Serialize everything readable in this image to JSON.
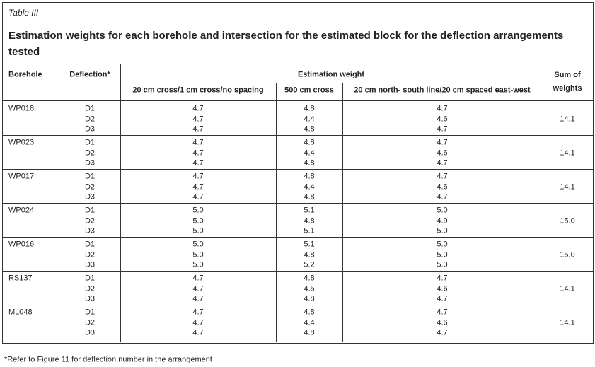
{
  "table": {
    "label": "Table III",
    "title": "Estimation weights for each borehole and intersection for the estimated block for the deflection arrangements tested",
    "headers": {
      "borehole": "Borehole",
      "deflection": "Deflection*",
      "estimation_weight": "Estimation weight",
      "sub": [
        "20 cm cross/1 cm cross/no spacing",
        "500 cm cross",
        "20 cm north- south line/20 cm spaced east-west"
      ],
      "sum": "Sum of weights"
    },
    "groups": [
      {
        "borehole": "WP018",
        "rows": [
          [
            "D1",
            "4.7",
            "4.8",
            "4.7"
          ],
          [
            "D2",
            "4.7",
            "4.4",
            "4.6"
          ],
          [
            "D3",
            "4.7",
            "4.8",
            "4.7"
          ]
        ],
        "sum": "14.1"
      },
      {
        "borehole": "WP023",
        "rows": [
          [
            "D1",
            "4.7",
            "4.8",
            "4.7"
          ],
          [
            "D2",
            "4.7",
            "4.4",
            "4.6"
          ],
          [
            "D3",
            "4.7",
            "4.8",
            "4.7"
          ]
        ],
        "sum": "14.1"
      },
      {
        "borehole": "WP017",
        "rows": [
          [
            "D1",
            "4.7",
            "4.8",
            "4.7"
          ],
          [
            "D2",
            "4.7",
            "4.4",
            "4.6"
          ],
          [
            "D3",
            "4.7",
            "4.8",
            "4.7"
          ]
        ],
        "sum": "14.1"
      },
      {
        "borehole": "WP024",
        "rows": [
          [
            "D1",
            "5.0",
            "5.1",
            "5.0"
          ],
          [
            "D2",
            "5.0",
            "4.8",
            "4.9"
          ],
          [
            "D3",
            "5.0",
            "5.1",
            "5.0"
          ]
        ],
        "sum": "15.0"
      },
      {
        "borehole": "WP016",
        "rows": [
          [
            "D1",
            "5.0",
            "5.1",
            "5.0"
          ],
          [
            "D2",
            "5.0",
            "4.8",
            "5.0"
          ],
          [
            "D3",
            "5.0",
            "5.2",
            "5.0"
          ]
        ],
        "sum": "15.0"
      },
      {
        "borehole": "RS137",
        "rows": [
          [
            "D1",
            "4.7",
            "4.8",
            "4.7"
          ],
          [
            "D2",
            "4.7",
            "4.5",
            "4.6"
          ],
          [
            "D3",
            "4.7",
            "4.8",
            "4.7"
          ]
        ],
        "sum": "14.1"
      },
      {
        "borehole": "ML048",
        "rows": [
          [
            "D1",
            "4.7",
            "4.8",
            "4.7"
          ],
          [
            "D2",
            "4.7",
            "4.4",
            "4.6"
          ],
          [
            "D3",
            "4.7",
            "4.8",
            "4.7"
          ]
        ],
        "sum": "14.1"
      }
    ],
    "footnote": "*Refer to Figure 11 for deflection number in the arrangement"
  }
}
